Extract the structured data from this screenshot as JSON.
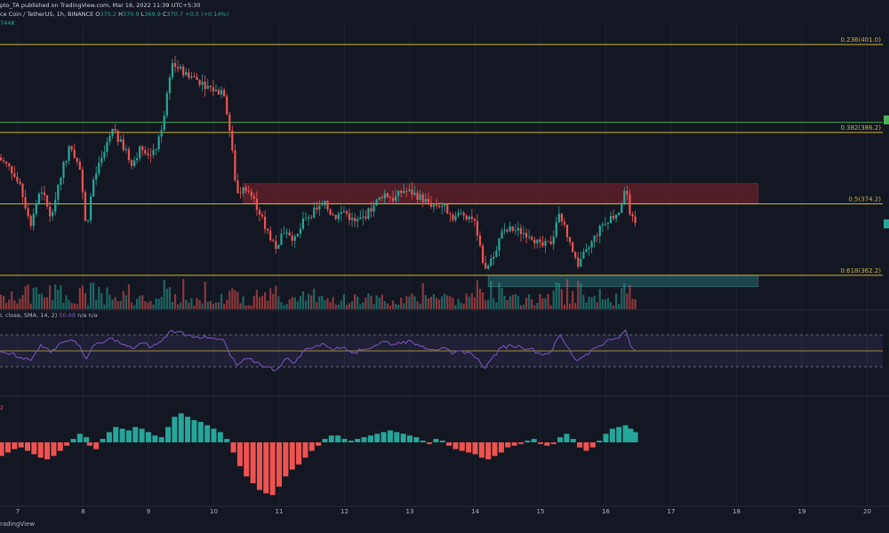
{
  "header": {
    "line1": "pto_TA published on TradingView.com, Mar 16, 2022 11:39 UTC+5:30",
    "symbol": "ce Coin / TetherUS, 1h, BINANCE",
    "o_label": "O",
    "o_value": "370.2",
    "h_label": "H",
    "h_value": "370.9",
    "l_label": "L",
    "l_value": "369.9",
    "c_label": "C",
    "c_value": "370.7",
    "change": "+0.5 (+0.14%)",
    "volume": "744K"
  },
  "rsi_legend": {
    "text": "I, close, SMA, 14, 2)",
    "value1": "50.68",
    "value2": "n/a n/a"
  },
  "macd_legend": {
    "text": "2"
  },
  "watermark": "radingView",
  "colors": {
    "background": "#131722",
    "up": "#26a69a",
    "down": "#ef5350",
    "fib_line": "#c9b53a",
    "green_line": "#4caf50",
    "rsi_line": "#7e57c2",
    "red_zone": "#5d1f28",
    "teal_zone": "#1e4f55"
  },
  "chart_data": [
    {
      "type": "candlestick",
      "x_ticks": [
        "7",
        "8",
        "9",
        "10",
        "11",
        "12",
        "13",
        "14",
        "15",
        "16",
        "17",
        "18",
        "19",
        "20"
      ],
      "ylim": [
        356.5,
        404.0
      ],
      "fib_levels": [
        {
          "ratio": "0.236",
          "value": 401.0,
          "label": "0.236(401.0)"
        },
        {
          "ratio": "0.382",
          "value": 386.2,
          "label": "0.382(386.2)"
        },
        {
          "ratio": "0.5",
          "value": 374.2,
          "label": "0.5(374.2)"
        },
        {
          "ratio": "0.618",
          "value": 362.2,
          "label": "0.618(362.2)"
        }
      ],
      "green_line": 387.9,
      "zones": [
        {
          "kind": "resistance",
          "x_from": 10.45,
          "x_to": 18.33,
          "y_from": 374.3,
          "y_to": 377.6
        },
        {
          "kind": "support",
          "x_from": 14.2,
          "x_to": 18.33,
          "y_from": 360.3,
          "y_to": 362.2
        }
      ],
      "price_path": [
        [
          6.7,
          382.0
        ],
        [
          6.9,
          380.0
        ],
        [
          7.05,
          376.5
        ],
        [
          7.2,
          371.0
        ],
        [
          7.35,
          377.0
        ],
        [
          7.5,
          372.0
        ],
        [
          7.65,
          379.0
        ],
        [
          7.8,
          384.0
        ],
        [
          7.95,
          380.0
        ],
        [
          8.05,
          370.0
        ],
        [
          8.15,
          378.0
        ],
        [
          8.3,
          382.0
        ],
        [
          8.45,
          386.5
        ],
        [
          8.6,
          384.0
        ],
        [
          8.75,
          381.0
        ],
        [
          8.9,
          384.0
        ],
        [
          9.05,
          382.0
        ],
        [
          9.2,
          386.0
        ],
        [
          9.35,
          398.0
        ],
        [
          9.45,
          397.0
        ],
        [
          9.6,
          396.0
        ],
        [
          9.75,
          395.0
        ],
        [
          9.9,
          394.0
        ],
        [
          10.05,
          393.0
        ],
        [
          10.15,
          393.5
        ],
        [
          10.25,
          386.0
        ],
        [
          10.35,
          376.0
        ],
        [
          10.5,
          377.0
        ],
        [
          10.65,
          374.0
        ],
        [
          10.8,
          370.0
        ],
        [
          10.95,
          367.0
        ],
        [
          11.1,
          370.0
        ],
        [
          11.25,
          368.0
        ],
        [
          11.4,
          372.0
        ],
        [
          11.55,
          373.0
        ],
        [
          11.7,
          374.0
        ],
        [
          11.85,
          372.0
        ],
        [
          12.0,
          373.0
        ],
        [
          12.15,
          371.0
        ],
        [
          12.3,
          372.0
        ],
        [
          12.45,
          374.0
        ],
        [
          12.6,
          376.0
        ],
        [
          12.75,
          375.0
        ],
        [
          12.9,
          376.5
        ],
        [
          13.05,
          376.0
        ],
        [
          13.2,
          375.0
        ],
        [
          13.35,
          374.0
        ],
        [
          13.5,
          374.0
        ],
        [
          13.65,
          372.0
        ],
        [
          13.8,
          372.5
        ],
        [
          13.95,
          372.0
        ],
        [
          14.05,
          369.0
        ],
        [
          14.15,
          362.5
        ],
        [
          14.25,
          365.0
        ],
        [
          14.4,
          369.0
        ],
        [
          14.55,
          370.0
        ],
        [
          14.7,
          369.5
        ],
        [
          14.85,
          369.0
        ],
        [
          15.0,
          367.0
        ],
        [
          15.15,
          367.5
        ],
        [
          15.3,
          372.5
        ],
        [
          15.4,
          369.0
        ],
        [
          15.55,
          364.0
        ],
        [
          15.7,
          366.0
        ],
        [
          15.85,
          369.0
        ],
        [
          16.0,
          371.5
        ],
        [
          16.1,
          372.0
        ],
        [
          16.2,
          373.0
        ],
        [
          16.3,
          377.0
        ],
        [
          16.38,
          372.0
        ],
        [
          16.45,
          370.7
        ]
      ]
    },
    {
      "type": "line",
      "name": "RSI",
      "ylim": [
        0,
        100
      ],
      "bands": [
        70,
        50,
        30
      ],
      "values": [
        [
          6.7,
          52
        ],
        [
          6.9,
          47
        ],
        [
          7.05,
          42
        ],
        [
          7.2,
          38
        ],
        [
          7.35,
          58
        ],
        [
          7.5,
          48
        ],
        [
          7.65,
          60
        ],
        [
          7.8,
          64
        ],
        [
          7.95,
          56
        ],
        [
          8.05,
          40
        ],
        [
          8.15,
          56
        ],
        [
          8.3,
          60
        ],
        [
          8.45,
          66
        ],
        [
          8.6,
          58
        ],
        [
          8.75,
          53
        ],
        [
          8.9,
          60
        ],
        [
          9.05,
          55
        ],
        [
          9.2,
          62
        ],
        [
          9.35,
          76
        ],
        [
          9.45,
          74
        ],
        [
          9.6,
          70
        ],
        [
          9.75,
          68
        ],
        [
          9.9,
          66
        ],
        [
          10.05,
          64
        ],
        [
          10.15,
          64
        ],
        [
          10.25,
          44
        ],
        [
          10.35,
          32
        ],
        [
          10.5,
          40
        ],
        [
          10.65,
          36
        ],
        [
          10.8,
          30
        ],
        [
          10.95,
          26
        ],
        [
          11.1,
          40
        ],
        [
          11.25,
          36
        ],
        [
          11.4,
          52
        ],
        [
          11.55,
          56
        ],
        [
          11.7,
          58
        ],
        [
          11.85,
          52
        ],
        [
          12.0,
          55
        ],
        [
          12.15,
          48
        ],
        [
          12.3,
          52
        ],
        [
          12.45,
          56
        ],
        [
          12.6,
          62
        ],
        [
          12.75,
          58
        ],
        [
          12.9,
          62
        ],
        [
          13.05,
          60
        ],
        [
          13.2,
          56
        ],
        [
          13.35,
          52
        ],
        [
          13.5,
          54
        ],
        [
          13.65,
          46
        ],
        [
          13.8,
          50
        ],
        [
          13.95,
          46
        ],
        [
          14.05,
          40
        ],
        [
          14.15,
          28
        ],
        [
          14.25,
          40
        ],
        [
          14.4,
          54
        ],
        [
          14.55,
          57
        ],
        [
          14.7,
          55
        ],
        [
          14.85,
          53
        ],
        [
          15.0,
          46
        ],
        [
          15.15,
          48
        ],
        [
          15.3,
          70
        ],
        [
          15.4,
          56
        ],
        [
          15.55,
          38
        ],
        [
          15.7,
          46
        ],
        [
          15.85,
          54
        ],
        [
          16.0,
          62
        ],
        [
          16.1,
          64
        ],
        [
          16.2,
          66
        ],
        [
          16.3,
          76
        ],
        [
          16.38,
          56
        ],
        [
          16.45,
          50.68
        ]
      ]
    },
    {
      "type": "bar",
      "name": "MACD histogram",
      "ylim": [
        -3.5,
        2.5
      ],
      "values": [
        [
          6.75,
          -0.8
        ],
        [
          6.85,
          -0.6
        ],
        [
          6.95,
          -0.4
        ],
        [
          7.05,
          -0.3
        ],
        [
          7.15,
          -0.5
        ],
        [
          7.25,
          -0.7
        ],
        [
          7.35,
          -0.9
        ],
        [
          7.45,
          -1.0
        ],
        [
          7.55,
          -0.8
        ],
        [
          7.65,
          -0.5
        ],
        [
          7.75,
          -0.2
        ],
        [
          7.85,
          0.2
        ],
        [
          7.95,
          0.5
        ],
        [
          8.05,
          0.3
        ],
        [
          8.1,
          -0.2
        ],
        [
          8.2,
          -0.4
        ],
        [
          8.3,
          0.2
        ],
        [
          8.4,
          0.6
        ],
        [
          8.5,
          0.9
        ],
        [
          8.6,
          0.8
        ],
        [
          8.7,
          0.7
        ],
        [
          8.8,
          0.9
        ],
        [
          8.9,
          0.8
        ],
        [
          9.0,
          0.6
        ],
        [
          9.1,
          0.4
        ],
        [
          9.2,
          0.3
        ],
        [
          9.3,
          0.9
        ],
        [
          9.4,
          1.5
        ],
        [
          9.5,
          1.7
        ],
        [
          9.6,
          1.5
        ],
        [
          9.7,
          1.3
        ],
        [
          9.8,
          1.2
        ],
        [
          9.9,
          1.0
        ],
        [
          10.0,
          0.8
        ],
        [
          10.1,
          0.6
        ],
        [
          10.2,
          0.2
        ],
        [
          10.3,
          -0.6
        ],
        [
          10.4,
          -1.4
        ],
        [
          10.5,
          -2.0
        ],
        [
          10.6,
          -2.4
        ],
        [
          10.7,
          -2.8
        ],
        [
          10.8,
          -3.0
        ],
        [
          10.9,
          -3.1
        ],
        [
          11.0,
          -2.6
        ],
        [
          11.1,
          -2.0
        ],
        [
          11.2,
          -1.6
        ],
        [
          11.3,
          -1.3
        ],
        [
          11.4,
          -0.9
        ],
        [
          11.5,
          -0.5
        ],
        [
          11.6,
          -0.2
        ],
        [
          11.7,
          0.2
        ],
        [
          11.8,
          0.4
        ],
        [
          11.9,
          0.4
        ],
        [
          12.0,
          0.2
        ],
        [
          12.1,
          0.1
        ],
        [
          12.2,
          0.2
        ],
        [
          12.3,
          0.3
        ],
        [
          12.4,
          0.4
        ],
        [
          12.5,
          0.5
        ],
        [
          12.6,
          0.6
        ],
        [
          12.7,
          0.7
        ],
        [
          12.8,
          0.6
        ],
        [
          12.9,
          0.5
        ],
        [
          13.0,
          0.4
        ],
        [
          13.1,
          0.3
        ],
        [
          13.2,
          0.1
        ],
        [
          13.3,
          -0.1
        ],
        [
          13.4,
          0.2
        ],
        [
          13.5,
          0.1
        ],
        [
          13.6,
          -0.2
        ],
        [
          13.7,
          -0.4
        ],
        [
          13.8,
          -0.5
        ],
        [
          13.9,
          -0.6
        ],
        [
          14.0,
          -0.7
        ],
        [
          14.1,
          -0.9
        ],
        [
          14.2,
          -1.0
        ],
        [
          14.3,
          -0.8
        ],
        [
          14.4,
          -0.6
        ],
        [
          14.5,
          -0.3
        ],
        [
          14.6,
          -0.2
        ],
        [
          14.7,
          -0.1
        ],
        [
          14.8,
          0.1
        ],
        [
          14.9,
          0.2
        ],
        [
          15.0,
          -0.1
        ],
        [
          15.1,
          -0.2
        ],
        [
          15.2,
          -0.1
        ],
        [
          15.3,
          0.3
        ],
        [
          15.4,
          0.5
        ],
        [
          15.5,
          0.2
        ],
        [
          15.6,
          -0.3
        ],
        [
          15.7,
          -0.5
        ],
        [
          15.8,
          -0.3
        ],
        [
          15.9,
          0.1
        ],
        [
          16.0,
          0.5
        ],
        [
          16.1,
          0.8
        ],
        [
          16.2,
          0.9
        ],
        [
          16.3,
          1.0
        ],
        [
          16.38,
          0.8
        ],
        [
          16.45,
          0.6
        ]
      ]
    }
  ]
}
